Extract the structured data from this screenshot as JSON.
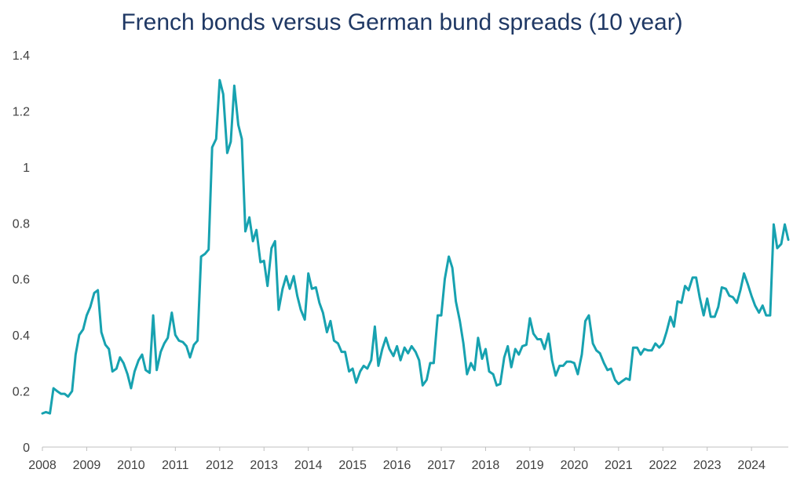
{
  "chart_data": {
    "type": "line",
    "title": "French bonds versus German bund spreads (10 year)",
    "xlabel": "",
    "ylabel": "",
    "xlim": [
      2008,
      2024.83
    ],
    "ylim": [
      0,
      1.4
    ],
    "yticks": [
      "0",
      "0.2",
      "0.4",
      "0.6",
      "0.8",
      "1",
      "1.2",
      "1.4"
    ],
    "xticks": [
      "2008",
      "2009",
      "2010",
      "2011",
      "2012",
      "2013",
      "2014",
      "2015",
      "2016",
      "2017",
      "2018",
      "2019",
      "2020",
      "2021",
      "2022",
      "2023",
      "2024"
    ],
    "grid": false,
    "legend": "none",
    "color": "#17a2b0",
    "series": [
      {
        "x": [
          2008.0,
          2008.08,
          2008.17,
          2008.25,
          2008.33,
          2008.42,
          2008.5,
          2008.58,
          2008.67,
          2008.75,
          2008.83,
          2008.92,
          2009.0,
          2009.08,
          2009.17,
          2009.25,
          2009.33,
          2009.42,
          2009.5,
          2009.58,
          2009.67,
          2009.75,
          2009.83,
          2009.92,
          2010.0,
          2010.08,
          2010.17,
          2010.25,
          2010.33,
          2010.42,
          2010.5,
          2010.58,
          2010.67,
          2010.75,
          2010.83,
          2010.92,
          2011.0,
          2011.08,
          2011.17,
          2011.25,
          2011.33,
          2011.42,
          2011.5,
          2011.58,
          2011.67,
          2011.75,
          2011.83,
          2011.92,
          2012.0,
          2012.08,
          2012.17,
          2012.25,
          2012.33,
          2012.42,
          2012.5,
          2012.58,
          2012.67,
          2012.75,
          2012.83,
          2012.92,
          2013.0,
          2013.08,
          2013.17,
          2013.25,
          2013.33,
          2013.42,
          2013.5,
          2013.58,
          2013.67,
          2013.75,
          2013.83,
          2013.92,
          2014.0,
          2014.08,
          2014.17,
          2014.25,
          2014.33,
          2014.42,
          2014.5,
          2014.58,
          2014.67,
          2014.75,
          2014.83,
          2014.92,
          2015.0,
          2015.08,
          2015.17,
          2015.25,
          2015.33,
          2015.42,
          2015.5,
          2015.58,
          2015.67,
          2015.75,
          2015.83,
          2015.92,
          2016.0,
          2016.08,
          2016.17,
          2016.25,
          2016.33,
          2016.42,
          2016.5,
          2016.58,
          2016.67,
          2016.75,
          2016.83,
          2016.92,
          2017.0,
          2017.08,
          2017.17,
          2017.25,
          2017.33,
          2017.42,
          2017.5,
          2017.58,
          2017.67,
          2017.75,
          2017.83,
          2017.92,
          2018.0,
          2018.08,
          2018.17,
          2018.25,
          2018.33,
          2018.42,
          2018.5,
          2018.58,
          2018.67,
          2018.75,
          2018.83,
          2018.92,
          2019.0,
          2019.08,
          2019.17,
          2019.25,
          2019.33,
          2019.42,
          2019.5,
          2019.58,
          2019.67,
          2019.75,
          2019.83,
          2019.92,
          2020.0,
          2020.08,
          2020.17,
          2020.25,
          2020.33,
          2020.42,
          2020.5,
          2020.58,
          2020.67,
          2020.75,
          2020.83,
          2020.92,
          2021.0,
          2021.08,
          2021.17,
          2021.25,
          2021.33,
          2021.42,
          2021.5,
          2021.58,
          2021.67,
          2021.75,
          2021.83,
          2021.92,
          2022.0,
          2022.08,
          2022.17,
          2022.25,
          2022.33,
          2022.42,
          2022.5,
          2022.58,
          2022.67,
          2022.75,
          2022.83,
          2022.92,
          2023.0,
          2023.08,
          2023.17,
          2023.25,
          2023.33,
          2023.42,
          2023.5,
          2023.58,
          2023.67,
          2023.75,
          2023.83,
          2023.92,
          2024.0,
          2024.08,
          2024.17,
          2024.25,
          2024.33,
          2024.42,
          2024.5,
          2024.58,
          2024.67,
          2024.75,
          2024.83
        ],
        "values": [
          0.12,
          0.125,
          0.12,
          0.21,
          0.2,
          0.19,
          0.19,
          0.18,
          0.2,
          0.33,
          0.4,
          0.42,
          0.47,
          0.5,
          0.55,
          0.56,
          0.41,
          0.365,
          0.35,
          0.27,
          0.28,
          0.32,
          0.3,
          0.26,
          0.21,
          0.27,
          0.31,
          0.33,
          0.275,
          0.265,
          0.47,
          0.275,
          0.34,
          0.37,
          0.39,
          0.48,
          0.4,
          0.38,
          0.375,
          0.36,
          0.32,
          0.365,
          0.38,
          0.68,
          0.69,
          0.705,
          1.07,
          1.1,
          1.31,
          1.26,
          1.05,
          1.09,
          1.29,
          1.15,
          1.1,
          0.77,
          0.82,
          0.735,
          0.775,
          0.66,
          0.665,
          0.575,
          0.71,
          0.735,
          0.49,
          0.565,
          0.61,
          0.565,
          0.61,
          0.54,
          0.49,
          0.455,
          0.62,
          0.565,
          0.57,
          0.515,
          0.48,
          0.41,
          0.45,
          0.38,
          0.37,
          0.34,
          0.34,
          0.27,
          0.28,
          0.23,
          0.27,
          0.29,
          0.28,
          0.31,
          0.43,
          0.29,
          0.35,
          0.39,
          0.35,
          0.325,
          0.36,
          0.31,
          0.355,
          0.335,
          0.36,
          0.34,
          0.31,
          0.22,
          0.24,
          0.3,
          0.3,
          0.47,
          0.47,
          0.6,
          0.68,
          0.64,
          0.52,
          0.45,
          0.37,
          0.26,
          0.3,
          0.275,
          0.39,
          0.315,
          0.35,
          0.27,
          0.26,
          0.22,
          0.225,
          0.32,
          0.36,
          0.285,
          0.35,
          0.33,
          0.36,
          0.365,
          0.46,
          0.405,
          0.385,
          0.385,
          0.35,
          0.405,
          0.31,
          0.255,
          0.29,
          0.29,
          0.305,
          0.305,
          0.3,
          0.26,
          0.33,
          0.45,
          0.47,
          0.37,
          0.345,
          0.335,
          0.3,
          0.275,
          0.28,
          0.24,
          0.225,
          0.235,
          0.245,
          0.24,
          0.355,
          0.355,
          0.33,
          0.35,
          0.345,
          0.345,
          0.37,
          0.355,
          0.37,
          0.41,
          0.465,
          0.43,
          0.52,
          0.515,
          0.575,
          0.56,
          0.605,
          0.605,
          0.535,
          0.47,
          0.53,
          0.465,
          0.465,
          0.5,
          0.57,
          0.565,
          0.54,
          0.535,
          0.515,
          0.56,
          0.62,
          0.58,
          0.54,
          0.505,
          0.48,
          0.505,
          0.47,
          0.47,
          0.795,
          0.71,
          0.725,
          0.795,
          0.74
        ]
      }
    ]
  }
}
